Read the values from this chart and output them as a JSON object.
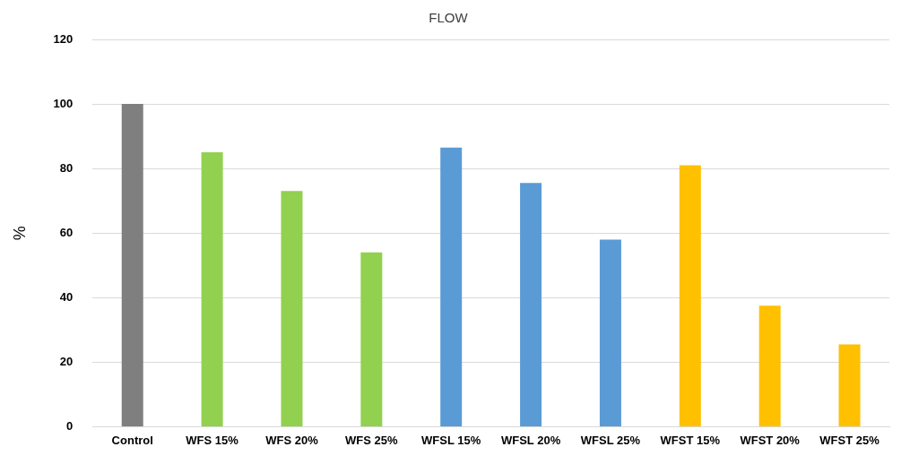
{
  "chart_data": {
    "type": "bar",
    "title": "FLOW",
    "ylabel": "%",
    "categories": [
      "Control",
      "WFS 15%",
      "WFS 20%",
      "WFS 25%",
      "WFSL 15%",
      "WFSL 20%",
      "WFSL 25%",
      "WFST 15%",
      "WFST 20%",
      "WFST 25%"
    ],
    "values": [
      100,
      85,
      73,
      54,
      86.5,
      75.5,
      58,
      81,
      37.5,
      25.5
    ],
    "colors": [
      "#7f7f7f",
      "#92d050",
      "#92d050",
      "#92d050",
      "#5b9bd5",
      "#5b9bd5",
      "#5b9bd5",
      "#ffc000",
      "#ffc000",
      "#ffc000"
    ],
    "ylim": [
      0,
      120
    ],
    "yticks": [
      0,
      20,
      40,
      60,
      80,
      100,
      120
    ],
    "grid": "y"
  }
}
